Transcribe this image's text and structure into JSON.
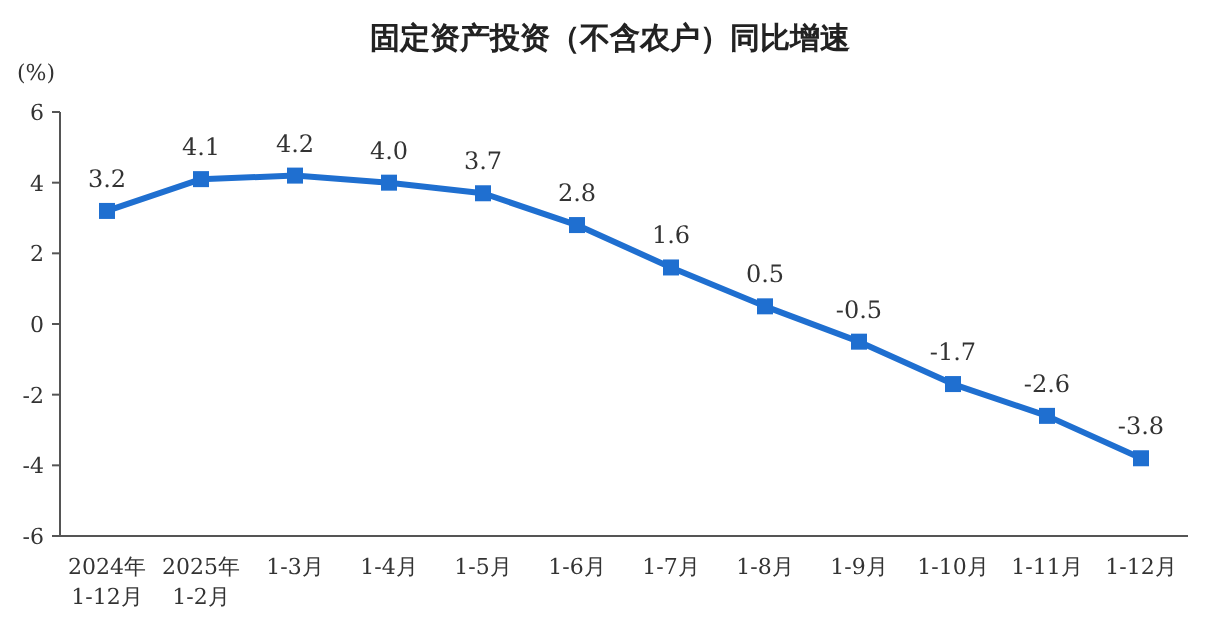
{
  "chart_data": {
    "type": "line",
    "title": "固定资产投资（不含农户）同比增速",
    "ylabel": "(%)",
    "categories": [
      "2024年\n1-12月",
      "2025年\n1-2月",
      "1-3月",
      "1-4月",
      "1-5月",
      "1-6月",
      "1-7月",
      "1-8月",
      "1-9月",
      "1-10月",
      "1-11月",
      "1-12月"
    ],
    "values": [
      3.2,
      4.1,
      4.2,
      4.0,
      3.7,
      2.8,
      1.6,
      0.5,
      -0.5,
      -1.7,
      -2.6,
      -3.8
    ],
    "color": "#1f6fd0",
    "ylim": [
      -6,
      6
    ],
    "yticks": [
      -6,
      -4,
      -2,
      0,
      2,
      4,
      6
    ],
    "value_labels": [
      "3.2",
      "4.1",
      "4.2",
      "4.0",
      "3.7",
      "2.8",
      "1.6",
      "0.5",
      "-0.5",
      "-1.7",
      "-2.6",
      "-3.8"
    ],
    "marker": "square"
  }
}
